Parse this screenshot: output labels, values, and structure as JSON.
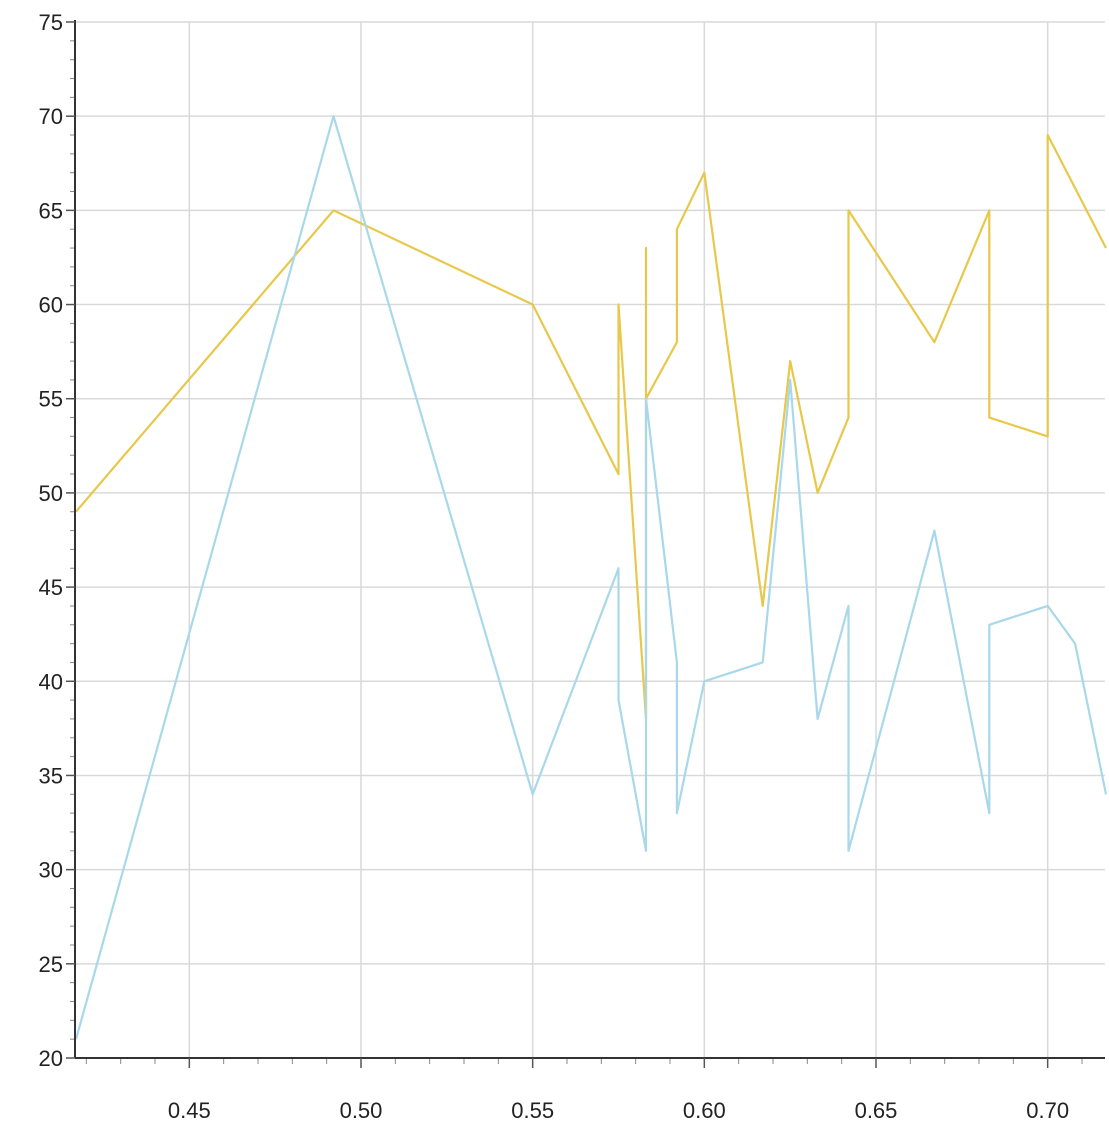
{
  "chart_data": {
    "type": "line",
    "title": "",
    "xlabel": "",
    "ylabel": "",
    "xlim": [
      0.4167,
      0.7167
    ],
    "ylim": [
      20,
      75
    ],
    "grid": true,
    "x_ticks": [
      "0.45",
      "0.50",
      "0.55",
      "0.60",
      "0.65",
      "0.70"
    ],
    "y_ticks": [
      "20",
      "25",
      "30",
      "35",
      "40",
      "45",
      "50",
      "55",
      "60",
      "65",
      "70",
      "75"
    ],
    "x_tick_values": [
      0.45,
      0.5,
      0.55,
      0.6,
      0.65,
      0.7
    ],
    "y_tick_values": [
      20,
      25,
      30,
      35,
      40,
      45,
      50,
      55,
      60,
      65,
      70,
      75
    ],
    "series": [
      {
        "color": "#e8c84a",
        "points": [
          [
            0.417,
            49
          ],
          [
            0.492,
            65
          ],
          [
            0.55,
            60
          ],
          [
            0.575,
            51
          ],
          [
            0.575,
            60
          ],
          [
            0.583,
            38
          ],
          [
            0.583,
            63
          ],
          [
            0.583,
            55
          ],
          [
            0.592,
            58
          ],
          [
            0.592,
            64
          ],
          [
            0.6,
            67
          ],
          [
            0.617,
            44
          ],
          [
            0.625,
            57
          ],
          [
            0.633,
            50
          ],
          [
            0.642,
            54
          ],
          [
            0.642,
            65
          ],
          [
            0.667,
            58
          ],
          [
            0.683,
            65
          ],
          [
            0.683,
            54
          ],
          [
            0.7,
            53
          ],
          [
            0.7,
            69
          ],
          [
            0.717,
            63
          ]
        ]
      },
      {
        "color": "#a8d8ea",
        "points": [
          [
            0.417,
            21
          ],
          [
            0.492,
            70
          ],
          [
            0.55,
            34
          ],
          [
            0.575,
            46
          ],
          [
            0.575,
            39
          ],
          [
            0.583,
            31
          ],
          [
            0.583,
            55
          ],
          [
            0.592,
            41
          ],
          [
            0.592,
            33
          ],
          [
            0.6,
            40
          ],
          [
            0.617,
            41
          ],
          [
            0.625,
            56
          ],
          [
            0.633,
            38
          ],
          [
            0.642,
            44
          ],
          [
            0.642,
            31
          ],
          [
            0.667,
            48
          ],
          [
            0.683,
            33
          ],
          [
            0.683,
            43
          ],
          [
            0.7,
            44
          ],
          [
            0.708,
            42
          ],
          [
            0.717,
            34
          ]
        ]
      }
    ]
  }
}
